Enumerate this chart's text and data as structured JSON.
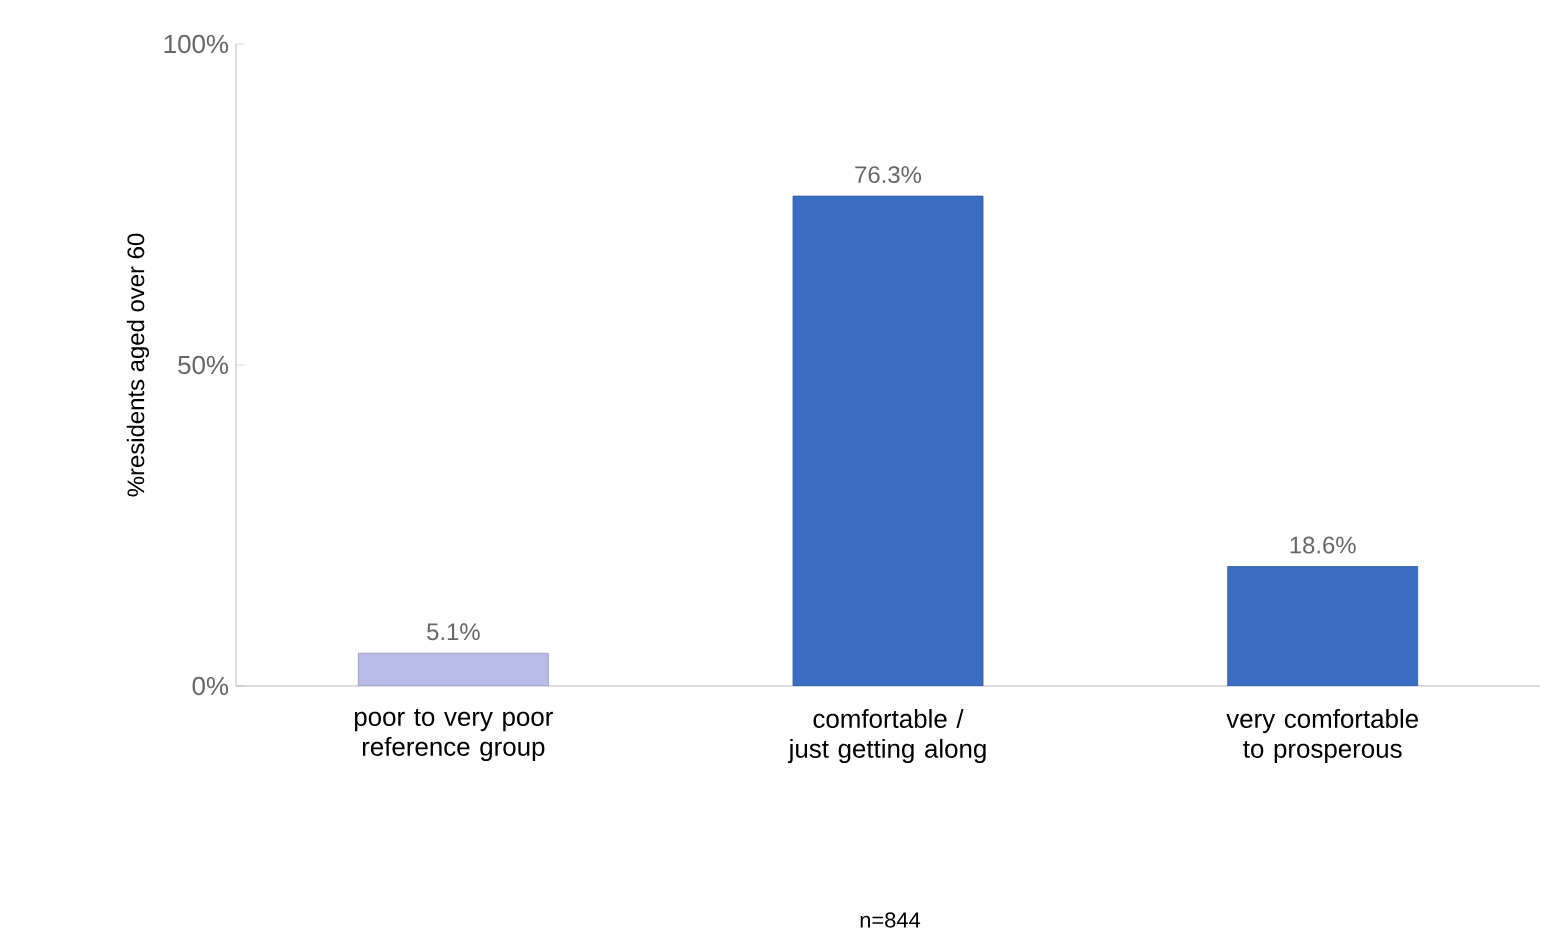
{
  "chart_data": {
    "type": "bar",
    "categories": [
      "poor to very poor reference group",
      "comfortable  / just getting along",
      "very comfortable to prosperous"
    ],
    "values": [
      5.1,
      76.3,
      18.6
    ],
    "colors": [
      "#b8bce8",
      "#3b6dc2",
      "#3b6dc2"
    ],
    "value_labels": [
      "5.1%",
      "76.3%",
      "18.6%"
    ],
    "ylabel": "%residents aged over 60",
    "ylim": [
      0,
      100
    ],
    "yticks": [
      {
        "value": 0,
        "label": "0%"
      },
      {
        "value": 50,
        "label": "50%"
      },
      {
        "value": 100,
        "label": "100%"
      }
    ],
    "annotations": [
      "n=844"
    ],
    "grid": false
  }
}
